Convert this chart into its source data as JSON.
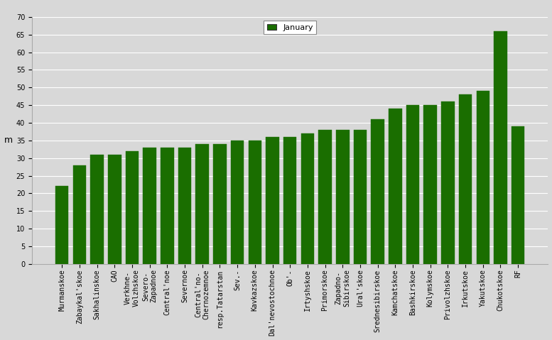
{
  "categories": [
    "Murmanskoe",
    "Zabaykal'skoe",
    "Sakhalinskoe",
    "CAO",
    "Verkhne-\nVolzhskoe",
    "Severo-\nZapadnoe",
    "Central'noe",
    "Severnoe",
    "Central'no-\nChernozemnoe",
    "resp.Tatarstan",
    "Sev.-",
    "Kavkazskoe",
    "Dal'nevostochnoe",
    "Ob'-",
    "Irtyshskoe",
    "Primorskoe",
    "Zapadno-\nSibirskoe",
    "Ural'skoe",
    "Srednesibirskoe",
    "Kamchatskoe",
    "Bashkirskoe",
    "Kolymskoe",
    "Privolzhskoe",
    "Irkutskoe",
    "Yakutskoe",
    "Chukotskoe",
    "RF"
  ],
  "values": [
    22,
    28,
    31,
    31,
    32,
    33,
    33,
    33,
    34,
    34,
    35,
    35,
    36,
    36,
    37,
    38,
    38,
    38,
    41,
    44,
    45,
    45,
    46,
    48,
    49,
    66,
    39
  ],
  "bar_color": "#1a6e00",
  "bar_edge_color": "#1a6e00",
  "legend_label": "January",
  "legend_color": "#1a6e00",
  "ylabel": "m",
  "ylim": [
    0,
    70
  ],
  "yticks": [
    0,
    5,
    10,
    15,
    20,
    25,
    30,
    35,
    40,
    45,
    50,
    55,
    60,
    65,
    70
  ],
  "background_color": "#d8d8d8",
  "plot_bg_color": "#d8d8d8",
  "grid_color": "#ffffff",
  "tick_fontsize": 7,
  "ylabel_fontsize": 9,
  "legend_fontsize": 8,
  "bar_width": 0.75
}
